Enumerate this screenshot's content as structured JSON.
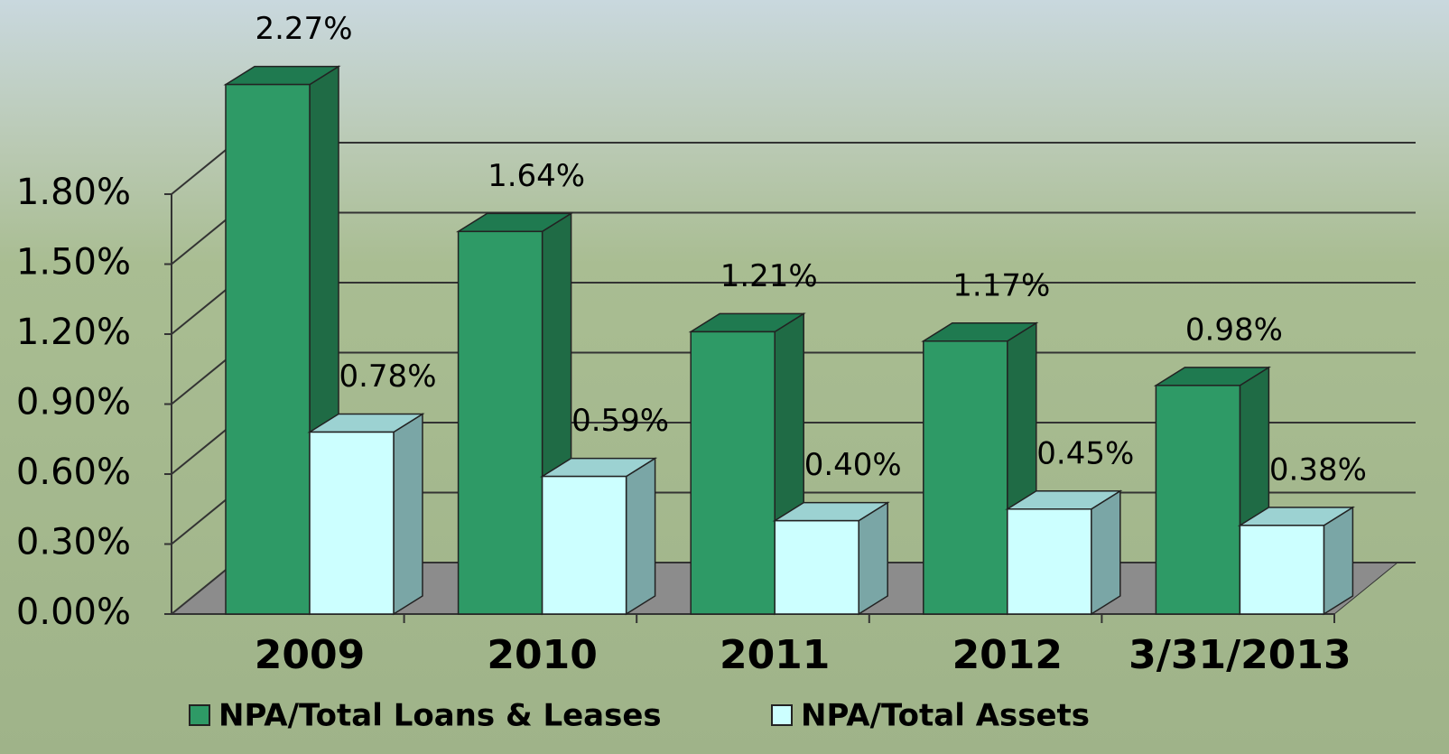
{
  "chart_data": {
    "type": "bar",
    "categories": [
      "2009",
      "2010",
      "2011",
      "2012",
      "3/31/2013"
    ],
    "series": [
      {
        "name": "NPA/Total Loans & Leases",
        "color": "#2e9a66",
        "values": [
          2.27,
          1.64,
          1.21,
          1.17,
          0.98
        ],
        "value_labels": [
          "2.27%",
          "1.64%",
          "1.21%",
          "1.17%",
          "0.98%"
        ]
      },
      {
        "name": "NPA/Total Assets",
        "color": "#ccffff",
        "values": [
          0.78,
          0.59,
          0.4,
          0.45,
          0.38
        ],
        "value_labels": [
          "0.78%",
          "0.59%",
          "0.40%",
          "0.45%",
          "0.38%"
        ]
      }
    ],
    "ylim": [
      0,
      2.4
    ],
    "yticks": [
      {
        "value": 0,
        "label": "0.00%"
      },
      {
        "value": 0.3,
        "label": "0.30%"
      },
      {
        "value": 0.6,
        "label": "0.60%"
      },
      {
        "value": 0.9,
        "label": "0.90%"
      },
      {
        "value": 1.2,
        "label": "1.20%"
      },
      {
        "value": 1.5,
        "label": "1.50%"
      },
      {
        "value": 1.8,
        "label": "1.80%"
      }
    ],
    "grid": true
  }
}
